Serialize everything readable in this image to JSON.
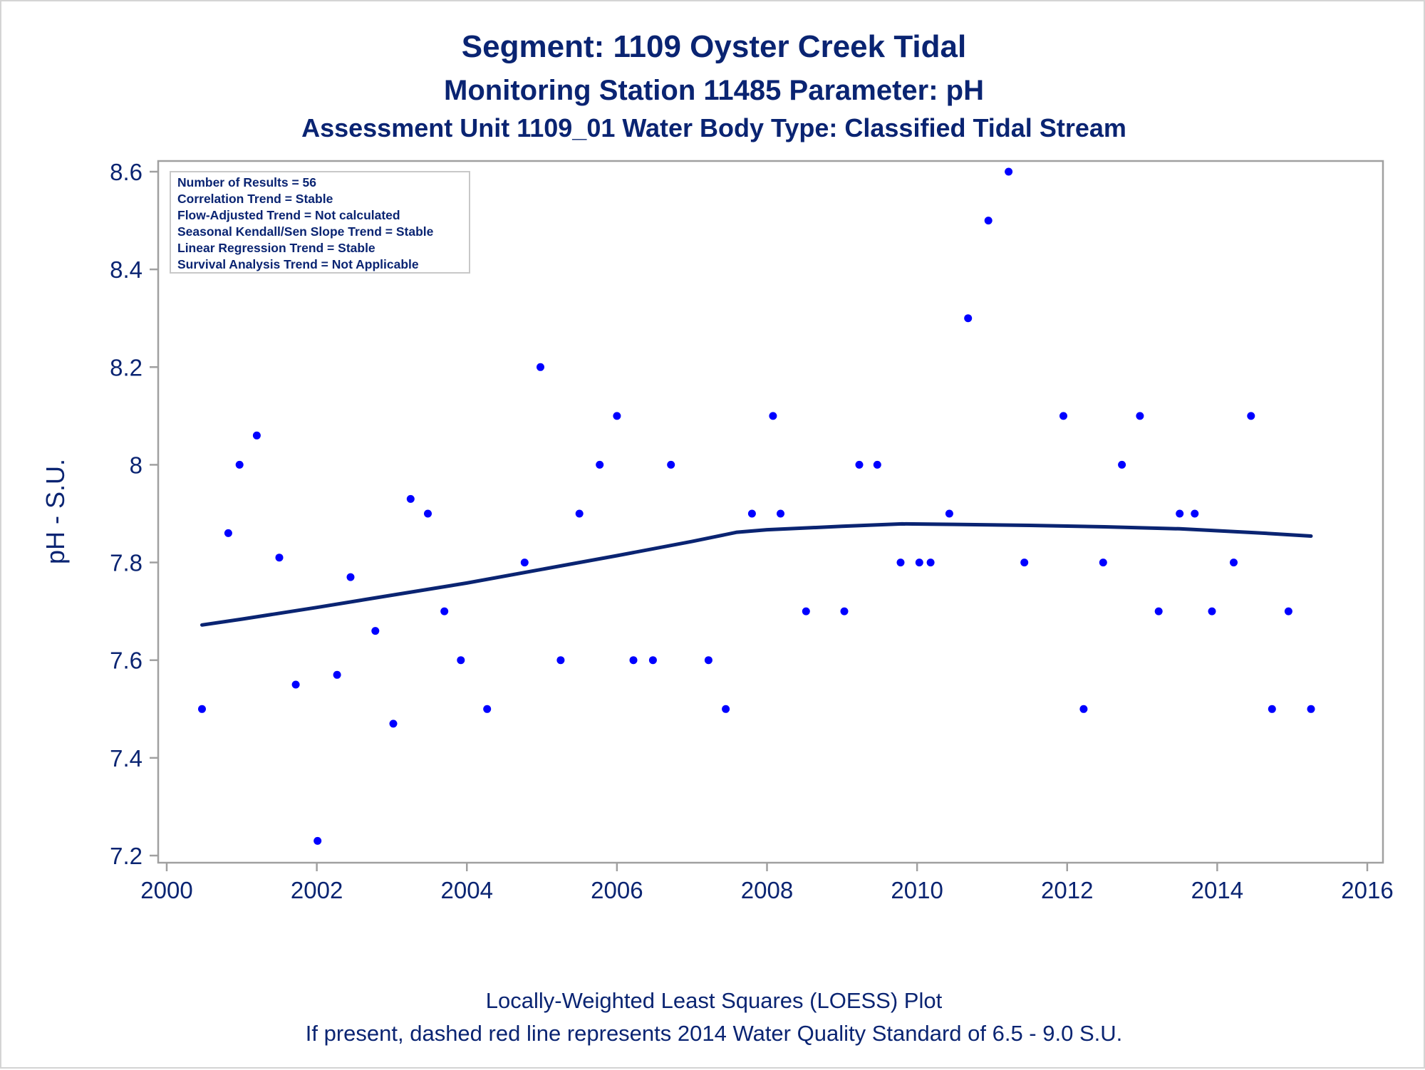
{
  "chart_data": {
    "type": "scatter",
    "title": "Segment: 1109  Oyster Creek Tidal",
    "subtitle": "Monitoring Station 11485 Parameter: pH",
    "subtitle2": "Assessment Unit 1109_01   Water Body Type: Classified Tidal Stream",
    "ylabel": "pH - S.U.",
    "xlabel": "",
    "xlim": [
      2000,
      2016
    ],
    "ylim": [
      7.18,
      8.63
    ],
    "xticks": [
      "2000",
      "2002",
      "2004",
      "2006",
      "2008",
      "2010",
      "2012",
      "2014",
      "2016"
    ],
    "yticks": [
      "7.2",
      "7.4",
      "7.6",
      "7.8",
      "8",
      "8.2",
      "8.4",
      "8.6"
    ],
    "grid": false,
    "point_color": "#0000ff",
    "line_color": "#0a2472",
    "stats": [
      "Number of Results = 56",
      "Correlation Trend = Stable",
      "Flow-Adjusted Trend = Not calculated",
      "Seasonal Kendall/Sen Slope Trend = Stable",
      "Linear Regression Trend = Stable",
      "Survival Analysis Trend = Not Applicable"
    ],
    "footnote1": "Locally-Weighted Least Squares (LOESS) Plot",
    "footnote2": "If present, dashed red line represents 2014 Water Quality Standard of 6.5 - 9.0 S.U.",
    "points": [
      [
        2000.47,
        7.5
      ],
      [
        2000.82,
        7.86
      ],
      [
        2000.97,
        8.0
      ],
      [
        2001.2,
        8.06
      ],
      [
        2001.5,
        7.81
      ],
      [
        2001.72,
        7.55
      ],
      [
        2002.01,
        7.23
      ],
      [
        2002.27,
        7.57
      ],
      [
        2002.45,
        7.77
      ],
      [
        2002.78,
        7.66
      ],
      [
        2003.02,
        7.47
      ],
      [
        2003.25,
        7.93
      ],
      [
        2003.48,
        7.9
      ],
      [
        2003.7,
        7.7
      ],
      [
        2003.92,
        7.6
      ],
      [
        2004.27,
        7.5
      ],
      [
        2004.77,
        7.8
      ],
      [
        2004.98,
        8.2
      ],
      [
        2005.25,
        7.6
      ],
      [
        2005.5,
        7.9
      ],
      [
        2005.77,
        8.0
      ],
      [
        2006.0,
        8.1
      ],
      [
        2006.22,
        7.6
      ],
      [
        2006.48,
        7.6
      ],
      [
        2006.72,
        8.0
      ],
      [
        2007.22,
        7.6
      ],
      [
        2007.45,
        7.5
      ],
      [
        2007.8,
        7.9
      ],
      [
        2008.08,
        8.1
      ],
      [
        2008.18,
        7.9
      ],
      [
        2008.52,
        7.7
      ],
      [
        2009.03,
        7.7
      ],
      [
        2009.23,
        8.0
      ],
      [
        2009.47,
        8.0
      ],
      [
        2009.78,
        7.8
      ],
      [
        2010.03,
        7.8
      ],
      [
        2010.18,
        7.8
      ],
      [
        2010.43,
        7.9
      ],
      [
        2010.68,
        8.3
      ],
      [
        2010.95,
        8.5
      ],
      [
        2011.22,
        8.6
      ],
      [
        2011.43,
        7.8
      ],
      [
        2011.95,
        8.1
      ],
      [
        2012.22,
        7.5
      ],
      [
        2012.48,
        7.8
      ],
      [
        2012.73,
        8.0
      ],
      [
        2012.97,
        8.1
      ],
      [
        2013.22,
        7.7
      ],
      [
        2013.5,
        7.9
      ],
      [
        2013.7,
        7.9
      ],
      [
        2013.93,
        7.7
      ],
      [
        2014.22,
        7.8
      ],
      [
        2014.45,
        8.1
      ],
      [
        2014.73,
        7.5
      ],
      [
        2014.95,
        7.7
      ],
      [
        2015.25,
        7.5
      ]
    ],
    "loess": [
      [
        2000.47,
        7.672
      ],
      [
        2001.0,
        7.684
      ],
      [
        2002.0,
        7.708
      ],
      [
        2003.0,
        7.733
      ],
      [
        2004.0,
        7.758
      ],
      [
        2005.0,
        7.786
      ],
      [
        2006.0,
        7.814
      ],
      [
        2007.0,
        7.843
      ],
      [
        2007.6,
        7.862
      ],
      [
        2008.0,
        7.867
      ],
      [
        2009.0,
        7.874
      ],
      [
        2009.8,
        7.879
      ],
      [
        2010.5,
        7.878
      ],
      [
        2011.5,
        7.876
      ],
      [
        2012.5,
        7.873
      ],
      [
        2013.5,
        7.869
      ],
      [
        2014.5,
        7.861
      ],
      [
        2015.25,
        7.854
      ]
    ]
  }
}
